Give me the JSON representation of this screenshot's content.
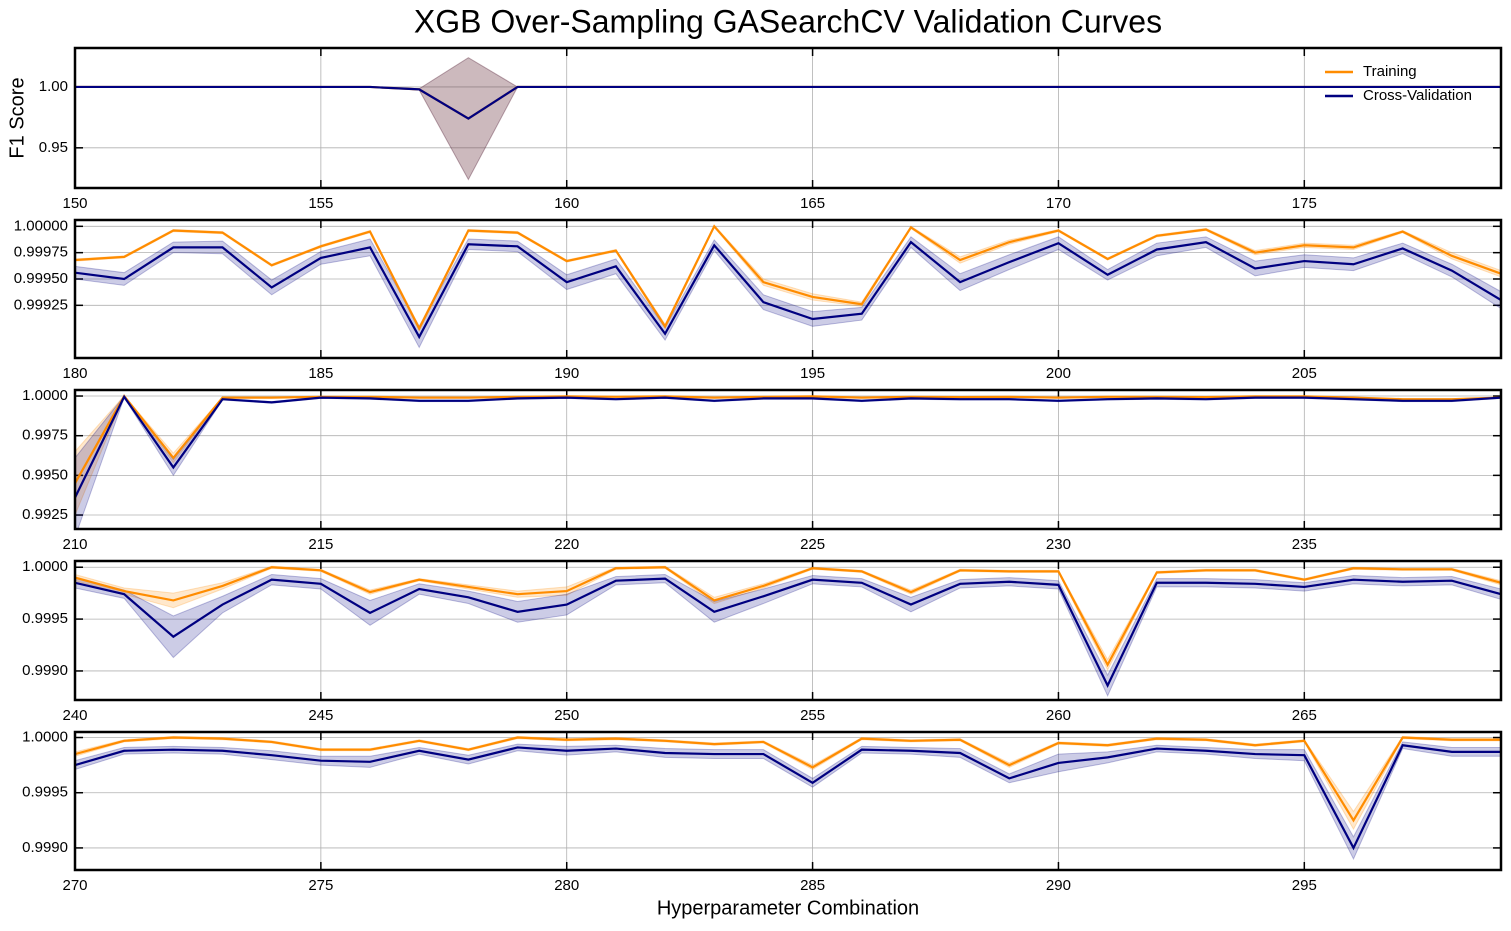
{
  "chart_data": [
    {
      "type": "line",
      "title": "XGB Over-Sampling GASearchCV Validation Curves",
      "ylabel": "F1 Score",
      "legend": "upper right",
      "grid": true,
      "xlim": [
        150,
        179
      ],
      "ylim": [
        0.917,
        1.032
      ],
      "xticks": [
        150,
        155,
        160,
        165,
        170,
        175
      ],
      "yticks": [
        {
          "value": 1,
          "label": "1.00"
        },
        0.95
      ],
      "x": [
        150,
        151,
        152,
        153,
        154,
        155,
        156,
        157,
        158,
        159,
        160,
        161,
        162,
        163,
        164,
        165,
        166,
        167,
        168,
        169,
        170,
        171,
        172,
        173,
        174,
        175,
        176,
        177,
        178,
        179
      ],
      "series": [
        {
          "name": "Training",
          "color": "#ff8c00",
          "values": [
            1,
            1,
            1,
            1,
            1,
            1,
            1,
            0.998,
            0.974,
            1,
            1,
            1,
            1,
            1,
            1,
            1,
            1,
            1,
            1,
            1,
            1,
            1,
            1,
            1,
            1,
            1,
            1,
            1,
            1,
            1
          ],
          "std": [
            0,
            0,
            0,
            0,
            0,
            0,
            0,
            0.0005,
            0.05,
            0,
            0,
            0,
            0,
            0,
            0,
            0,
            0,
            0,
            0,
            0,
            0,
            0,
            0,
            0,
            0,
            0,
            0,
            0,
            0,
            0
          ]
        },
        {
          "name": "Cross-Validation",
          "color": "#000080",
          "values": [
            1,
            1,
            1,
            1,
            1,
            1,
            1,
            0.998,
            0.974,
            1,
            1,
            1,
            1,
            1,
            1,
            1,
            1,
            1,
            1,
            1,
            1,
            1,
            1,
            1,
            1,
            1,
            1,
            1,
            1,
            1
          ],
          "std": [
            0,
            0,
            0,
            0,
            0,
            0,
            0,
            0.0005,
            0.05,
            0,
            0,
            0,
            0,
            0,
            0,
            0,
            0,
            0,
            0,
            0,
            0,
            0,
            0,
            0,
            0,
            0,
            0,
            0,
            0,
            0
          ]
        }
      ]
    },
    {
      "type": "line",
      "grid": true,
      "xlim": [
        180,
        209
      ],
      "ylim": [
        0.99875,
        1.00006
      ],
      "xticks": [
        180,
        185,
        190,
        195,
        200,
        205
      ],
      "yticks": [
        {
          "value": 1,
          "label": "1.00000"
        },
        0.99975,
        {
          "value": 0.9995,
          "label": "0.99950"
        },
        0.99925
      ],
      "x": [
        180,
        181,
        182,
        183,
        184,
        185,
        186,
        187,
        188,
        189,
        190,
        191,
        192,
        193,
        194,
        195,
        196,
        197,
        198,
        199,
        200,
        201,
        202,
        203,
        204,
        205,
        206,
        207,
        208,
        209
      ],
      "series": [
        {
          "name": "Training",
          "color": "#ff8c00",
          "values": [
            0.99968,
            0.99971,
            0.99996,
            0.99994,
            0.99963,
            0.99981,
            0.99995,
            0.99903,
            0.99996,
            0.99994,
            0.99967,
            0.99977,
            0.99905,
            1,
            0.99947,
            0.99933,
            0.99926,
            0.99999,
            0.99968,
            0.99985,
            0.99996,
            0.99969,
            0.99991,
            0.99997,
            0.99975,
            0.99982,
            0.9998,
            0.99995,
            0.99972,
            0.99955
          ],
          "std": [
            1e-05,
            1e-05,
            1e-05,
            1e-05,
            1e-05,
            1e-05,
            1e-05,
            2e-05,
            1e-05,
            1e-05,
            1e-05,
            1e-05,
            2e-05,
            1e-05,
            3e-05,
            3e-05,
            2e-05,
            1e-05,
            3e-05,
            2e-05,
            1e-05,
            1e-05,
            1e-05,
            1e-05,
            2e-05,
            2e-05,
            2e-05,
            1e-05,
            3e-05,
            3e-05
          ]
        },
        {
          "name": "Cross-Validation",
          "color": "#000080",
          "values": [
            0.99956,
            0.9995,
            0.9998,
            0.9998,
            0.99942,
            0.9997,
            0.9998,
            0.99895,
            0.99983,
            0.99981,
            0.99947,
            0.99962,
            0.99898,
            0.99982,
            0.99928,
            0.99912,
            0.99917,
            0.99985,
            0.99947,
            0.99966,
            0.99984,
            0.99954,
            0.99978,
            0.99985,
            0.9996,
            0.99967,
            0.99964,
            0.99979,
            0.99958,
            0.9993
          ],
          "std": [
            6e-05,
            6e-05,
            5e-05,
            6e-05,
            7e-05,
            6e-05,
            8e-05,
            0.0001,
            5e-05,
            5e-05,
            7e-05,
            7e-05,
            6e-05,
            5e-05,
            7e-05,
            7e-05,
            6e-05,
            5e-05,
            8e-05,
            7e-05,
            6e-05,
            5e-05,
            6e-05,
            5e-05,
            7e-05,
            6e-05,
            6e-05,
            5e-05,
            6e-05,
            8e-05
          ]
        }
      ]
    },
    {
      "type": "line",
      "grid": true,
      "xlim": [
        210,
        239
      ],
      "ylim": [
        0.99162,
        1.00038
      ],
      "xticks": [
        210,
        215,
        220,
        225,
        230,
        235
      ],
      "yticks": [
        {
          "value": 1,
          "label": "1.0000"
        },
        0.9975,
        {
          "value": 0.995,
          "label": "0.9950"
        },
        0.9925
      ],
      "x": [
        210,
        211,
        212,
        213,
        214,
        215,
        216,
        217,
        218,
        219,
        220,
        221,
        222,
        223,
        224,
        225,
        226,
        227,
        228,
        229,
        230,
        231,
        232,
        233,
        234,
        235,
        236,
        237,
        238,
        239
      ],
      "series": [
        {
          "name": "Training",
          "color": "#ff8c00",
          "values": [
            0.9945,
            1,
            0.9961,
            0.9999,
            0.9999,
            0.99995,
            0.99995,
            0.9999,
            0.9999,
            0.99995,
            0.99998,
            0.99995,
            0.99998,
            0.9999,
            0.99995,
            0.99998,
            0.9999,
            0.99995,
            0.99993,
            0.99995,
            0.9999,
            0.99995,
            0.99995,
            0.99993,
            0.99998,
            0.99998,
            0.9999,
            0.9998,
            0.9998,
            0.9999
          ],
          "std": [
            0.002,
            2e-05,
            0.0003,
            2e-05,
            2e-05,
            2e-05,
            2e-05,
            2e-05,
            2e-05,
            2e-05,
            2e-05,
            2e-05,
            2e-05,
            2e-05,
            2e-05,
            2e-05,
            2e-05,
            2e-05,
            2e-05,
            2e-05,
            2e-05,
            2e-05,
            2e-05,
            2e-05,
            2e-05,
            2e-05,
            2e-05,
            2e-05,
            2e-05,
            2e-05
          ]
        },
        {
          "name": "Cross-Validation",
          "color": "#000080",
          "values": [
            0.9936,
            0.99995,
            0.9955,
            0.9998,
            0.9996,
            0.9999,
            0.99985,
            0.9997,
            0.9997,
            0.99985,
            0.9999,
            0.9998,
            0.9999,
            0.9997,
            0.99985,
            0.99985,
            0.9997,
            0.99985,
            0.9998,
            0.9998,
            0.9997,
            0.9998,
            0.99985,
            0.9998,
            0.9999,
            0.9999,
            0.9998,
            0.9997,
            0.9997,
            0.9999
          ],
          "std": [
            0.0025,
            5e-05,
            0.0005,
            5e-05,
            5e-05,
            5e-05,
            5e-05,
            5e-05,
            5e-05,
            5e-05,
            5e-05,
            5e-05,
            5e-05,
            5e-05,
            5e-05,
            5e-05,
            5e-05,
            5e-05,
            5e-05,
            5e-05,
            5e-05,
            5e-05,
            5e-05,
            5e-05,
            5e-05,
            5e-05,
            5e-05,
            5e-05,
            5e-05,
            5e-05
          ]
        }
      ]
    },
    {
      "type": "line",
      "grid": true,
      "xlim": [
        240,
        269
      ],
      "ylim": [
        0.99872,
        1.00006
      ],
      "xticks": [
        240,
        245,
        250,
        255,
        260,
        265
      ],
      "yticks": [
        {
          "value": 1,
          "label": "1.0000"
        },
        0.9995,
        {
          "value": 0.999,
          "label": "0.9990"
        }
      ],
      "x": [
        240,
        241,
        242,
        243,
        244,
        245,
        246,
        247,
        248,
        249,
        250,
        251,
        252,
        253,
        254,
        255,
        256,
        257,
        258,
        259,
        260,
        261,
        262,
        263,
        264,
        265,
        266,
        267,
        268,
        269
      ],
      "series": [
        {
          "name": "Training",
          "color": "#ff8c00",
          "values": [
            0.9999,
            0.99977,
            0.99968,
            0.99982,
            1,
            0.99997,
            0.99976,
            0.99988,
            0.99981,
            0.99974,
            0.99977,
            0.99999,
            1,
            0.99968,
            0.99982,
            0.99999,
            0.99996,
            0.99976,
            0.99997,
            0.99996,
            0.99996,
            0.99906,
            0.99995,
            0.99997,
            0.99997,
            0.99988,
            0.99999,
            0.99998,
            0.99998,
            0.99985
          ],
          "std": [
            3e-05,
            3e-05,
            7e-05,
            3e-05,
            1e-05,
            1e-05,
            2e-05,
            1e-05,
            2e-05,
            3e-05,
            4e-05,
            1e-05,
            1e-05,
            3e-05,
            2e-05,
            1e-05,
            1e-05,
            2e-05,
            1e-05,
            1e-05,
            1e-05,
            5e-05,
            1e-05,
            1e-05,
            1e-05,
            1e-05,
            1e-05,
            1e-05,
            1e-05,
            2e-05
          ]
        },
        {
          "name": "Cross-Validation",
          "color": "#000080",
          "values": [
            0.99985,
            0.99974,
            0.99933,
            0.99964,
            0.99988,
            0.99984,
            0.99956,
            0.99979,
            0.99971,
            0.99957,
            0.99964,
            0.99987,
            0.99989,
            0.99957,
            0.99972,
            0.99988,
            0.99985,
            0.99964,
            0.99984,
            0.99986,
            0.99983,
            0.99886,
            0.99985,
            0.99985,
            0.99984,
            0.99981,
            0.99988,
            0.99986,
            0.99987,
            0.99974
          ],
          "std": [
            5e-05,
            4e-05,
            0.0002,
            8e-05,
            5e-05,
            5e-05,
            0.00012,
            5e-05,
            6e-05,
            0.0001,
            0.0001,
            4e-05,
            4e-05,
            0.0001,
            7e-05,
            4e-05,
            4e-05,
            7e-05,
            4e-05,
            4e-05,
            4e-05,
            0.0001,
            4e-05,
            4e-05,
            4e-05,
            4e-05,
            4e-05,
            4e-05,
            4e-05,
            5e-05
          ]
        }
      ]
    },
    {
      "type": "line",
      "grid": true,
      "xlabel": "Hyperparameter Combination",
      "xlim": [
        270,
        299
      ],
      "ylim": [
        0.9988,
        1.00005
      ],
      "xticks": [
        270,
        275,
        280,
        285,
        290,
        295
      ],
      "yticks": [
        {
          "value": 1,
          "label": "1.0000"
        },
        0.9995,
        {
          "value": 0.999,
          "label": "0.9990"
        }
      ],
      "x": [
        270,
        271,
        272,
        273,
        274,
        275,
        276,
        277,
        278,
        279,
        280,
        281,
        282,
        283,
        284,
        285,
        286,
        287,
        288,
        289,
        290,
        291,
        292,
        293,
        294,
        295,
        296,
        297,
        298,
        299
      ],
      "series": [
        {
          "name": "Training",
          "color": "#ff8c00",
          "values": [
            0.99985,
            0.99997,
            1,
            0.99999,
            0.99996,
            0.99989,
            0.99989,
            0.99997,
            0.99989,
            1,
            0.99998,
            0.99999,
            0.99997,
            0.99994,
            0.99996,
            0.99973,
            0.99999,
            0.99997,
            0.99998,
            0.99975,
            0.99995,
            0.99993,
            0.99999,
            0.99998,
            0.99993,
            0.99997,
            0.99925,
            1,
            0.99998,
            0.99998
          ],
          "std": [
            2e-05,
            1e-05,
            1e-05,
            1e-05,
            1e-05,
            1e-05,
            1e-05,
            1e-05,
            1e-05,
            1e-05,
            1e-05,
            1e-05,
            1e-05,
            1e-05,
            1e-05,
            2e-05,
            1e-05,
            1e-05,
            1e-05,
            2e-05,
            1e-05,
            1e-05,
            1e-05,
            1e-05,
            1e-05,
            1e-05,
            8e-05,
            1e-05,
            1e-05,
            1e-05
          ]
        },
        {
          "name": "Cross-Validation",
          "color": "#000080",
          "values": [
            0.99975,
            0.99988,
            0.99989,
            0.99988,
            0.99984,
            0.99979,
            0.99978,
            0.99988,
            0.9998,
            0.99991,
            0.99988,
            0.9999,
            0.99986,
            0.99985,
            0.99985,
            0.99959,
            0.99989,
            0.99988,
            0.99986,
            0.99963,
            0.99977,
            0.99982,
            0.9999,
            0.99988,
            0.99985,
            0.99984,
            0.999,
            0.99993,
            0.99987,
            0.99987
          ],
          "std": [
            4e-05,
            3e-05,
            3e-05,
            3e-05,
            4e-05,
            4e-05,
            5e-05,
            3e-05,
            4e-05,
            3e-05,
            4e-05,
            3e-05,
            4e-05,
            4e-05,
            4e-05,
            4e-05,
            3e-05,
            3e-05,
            4e-05,
            4e-05,
            8e-05,
            5e-05,
            3e-05,
            3e-05,
            4e-05,
            5e-05,
            0.0001,
            3e-05,
            4e-05,
            4e-05
          ]
        }
      ]
    }
  ]
}
